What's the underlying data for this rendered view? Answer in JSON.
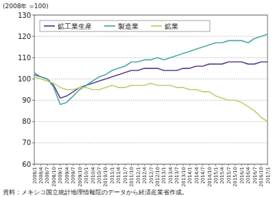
{
  "chart_data": {
    "type": "line",
    "ylabel": "(2008年 =100)",
    "source": "資料：メキシコ国立統計地理情報院のデータから経済産業省作成。",
    "categories": [
      "2008/1",
      "2008/4",
      "2008/7",
      "2008/10",
      "2009/1",
      "2009/4",
      "2009/7",
      "2009/10",
      "2010/1",
      "2010/4",
      "2010/7",
      "2010/10",
      "2011/1",
      "2011/4",
      "2011/7",
      "2011/10",
      "2012/1",
      "2012/4",
      "2012/7",
      "2012/10",
      "2013/1",
      "2013/4",
      "2013/7",
      "2013/10",
      "2014/1",
      "2014/4",
      "2014/7",
      "2014/10",
      "2015/1",
      "2015/4",
      "2015/7",
      "2015/10",
      "2016/1",
      "2016/4",
      "2016/7",
      "2016/10",
      "2017/1"
    ],
    "series": [
      {
        "name": "鉱工業生産",
        "color": "#5c3d8f",
        "values": [
          102,
          101,
          100,
          97,
          91,
          92,
          94,
          96,
          97,
          98,
          99,
          100,
          101,
          102,
          103,
          104,
          104,
          105,
          105,
          105,
          104,
          104,
          104,
          105,
          105,
          106,
          106,
          107,
          107,
          107,
          108,
          108,
          108,
          107,
          107,
          108,
          108
        ]
      },
      {
        "name": "製造業",
        "color": "#4aa9a1",
        "values": [
          103,
          101,
          100,
          96,
          88,
          89,
          92,
          95,
          97,
          99,
          101,
          102,
          104,
          105,
          106,
          108,
          108,
          109,
          109,
          110,
          109,
          110,
          111,
          112,
          113,
          114,
          115,
          116,
          117,
          117,
          118,
          118,
          118,
          117,
          119,
          120,
          121
        ]
      },
      {
        "name": "鉱業",
        "color": "#b3d36b",
        "values": [
          101,
          100,
          99,
          98,
          96,
          95,
          95,
          96,
          96,
          95,
          95,
          96,
          97,
          96,
          96,
          97,
          97,
          97,
          98,
          97,
          97,
          97,
          96,
          96,
          95,
          95,
          94,
          94,
          92,
          91,
          90,
          90,
          89,
          87,
          85,
          82,
          80
        ]
      }
    ],
    "ylim": [
      60,
      130
    ],
    "yticks": [
      60,
      70,
      80,
      90,
      100,
      110,
      120,
      130
    ],
    "grid": true,
    "legend": "top-left"
  }
}
